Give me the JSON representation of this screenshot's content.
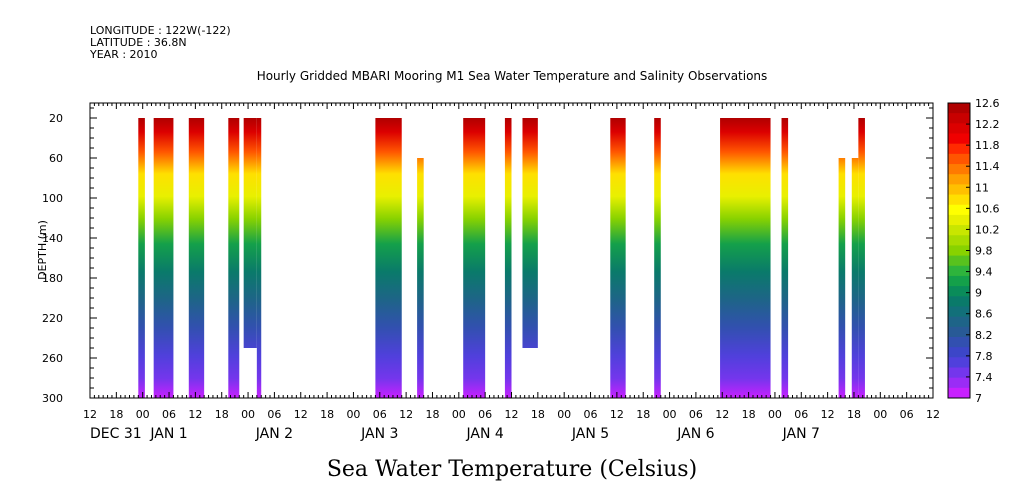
{
  "header": {
    "longitude": "LONGITUDE : 122W(-122)",
    "latitude": "LATITUDE : 36.8N",
    "year": "YEAR : 2010"
  },
  "chart_data": {
    "type": "heatmap",
    "title": "Hourly Gridded MBARI Mooring M1 Sea Water Temperature and Salinity Observations",
    "xlabel_bottom": "Sea Water Temperature (Celsius)",
    "ylabel": "DEPTH (m)",
    "y_ticks": [
      20,
      60,
      100,
      140,
      180,
      220,
      260,
      300
    ],
    "ylim": [
      300,
      5
    ],
    "x_range_hours": [
      -12,
      180
    ],
    "x_hour_ticks": [
      "12",
      "18",
      "00",
      "06",
      "12",
      "18",
      "00",
      "06",
      "12",
      "18",
      "00",
      "06",
      "12",
      "18",
      "00",
      "06",
      "12",
      "18",
      "00",
      "06",
      "12",
      "18",
      "00",
      "06",
      "12",
      "18",
      "00",
      "06",
      "12",
      "18",
      "00",
      "06",
      "12"
    ],
    "x_day_labels": [
      "DEC 31",
      "JAN 1",
      "JAN 2",
      "JAN 3",
      "JAN 4",
      "JAN 5",
      "JAN 6",
      "JAN 7"
    ],
    "colorbar": {
      "labels": [
        "12.6",
        "12.2",
        "11.8",
        "11.4",
        "11",
        "10.6",
        "10.2",
        "9.8",
        "9.4",
        "9",
        "8.6",
        "8.2",
        "7.8",
        "7.4",
        "7"
      ],
      "levels": [
        12.6,
        12.4,
        12.2,
        12.0,
        11.8,
        11.6,
        11.4,
        11.2,
        11.0,
        10.8,
        10.6,
        10.4,
        10.2,
        10.0,
        9.8,
        9.6,
        9.4,
        9.2,
        9.0,
        8.8,
        8.6,
        8.4,
        8.2,
        8.0,
        7.8,
        7.6,
        7.4,
        7.2,
        7.0
      ],
      "colors": [
        "#b00000",
        "#c80000",
        "#dc0000",
        "#f00000",
        "#ff2a00",
        "#ff5500",
        "#ff7a00",
        "#ffa000",
        "#ffc000",
        "#ffe000",
        "#ffff00",
        "#e8f000",
        "#c8e600",
        "#a8dc00",
        "#88d200",
        "#58c21e",
        "#2eb43c",
        "#14a04a",
        "#0a8c5a",
        "#0a7a6a",
        "#12707a",
        "#1e6488",
        "#285a96",
        "#3250b0",
        "#3c46c8",
        "#5040dc",
        "#7436ec",
        "#9a2cf6",
        "#c820ff"
      ]
    },
    "segments": [
      {
        "start_hour": -1.0,
        "end_hour": 0.5,
        "top_depth": 20,
        "bottom_depth": 300
      },
      {
        "start_hour": 2.5,
        "end_hour": 7.0,
        "top_depth": 20,
        "bottom_depth": 300
      },
      {
        "start_hour": 10.5,
        "end_hour": 14.0,
        "top_depth": 20,
        "bottom_depth": 300
      },
      {
        "start_hour": 19.5,
        "end_hour": 22.0,
        "top_depth": 20,
        "bottom_depth": 300
      },
      {
        "start_hour": 23.0,
        "end_hour": 26.0,
        "top_depth": 20,
        "bottom_depth": 250
      },
      {
        "start_hour": 26.0,
        "end_hour": 27.0,
        "top_depth": 20,
        "bottom_depth": 300
      },
      {
        "start_hour": 53.0,
        "end_hour": 59.0,
        "top_depth": 20,
        "bottom_depth": 300
      },
      {
        "start_hour": 62.5,
        "end_hour": 64.0,
        "top_depth": 60,
        "bottom_depth": 300
      },
      {
        "start_hour": 73.0,
        "end_hour": 78.0,
        "top_depth": 20,
        "bottom_depth": 300
      },
      {
        "start_hour": 82.5,
        "end_hour": 84.0,
        "top_depth": 20,
        "bottom_depth": 300
      },
      {
        "start_hour": 86.5,
        "end_hour": 90.0,
        "top_depth": 20,
        "bottom_depth": 250
      },
      {
        "start_hour": 106.5,
        "end_hour": 110.0,
        "top_depth": 20,
        "bottom_depth": 300
      },
      {
        "start_hour": 116.5,
        "end_hour": 118.0,
        "top_depth": 20,
        "bottom_depth": 300
      },
      {
        "start_hour": 131.5,
        "end_hour": 143.0,
        "top_depth": 20,
        "bottom_depth": 300
      },
      {
        "start_hour": 145.5,
        "end_hour": 147.0,
        "top_depth": 20,
        "bottom_depth": 300
      },
      {
        "start_hour": 158.5,
        "end_hour": 160.0,
        "top_depth": 60,
        "bottom_depth": 300
      },
      {
        "start_hour": 161.5,
        "end_hour": 163.0,
        "top_depth": 60,
        "bottom_depth": 300
      },
      {
        "start_hour": 163.0,
        "end_hour": 164.5,
        "top_depth": 20,
        "bottom_depth": 300
      }
    ]
  }
}
